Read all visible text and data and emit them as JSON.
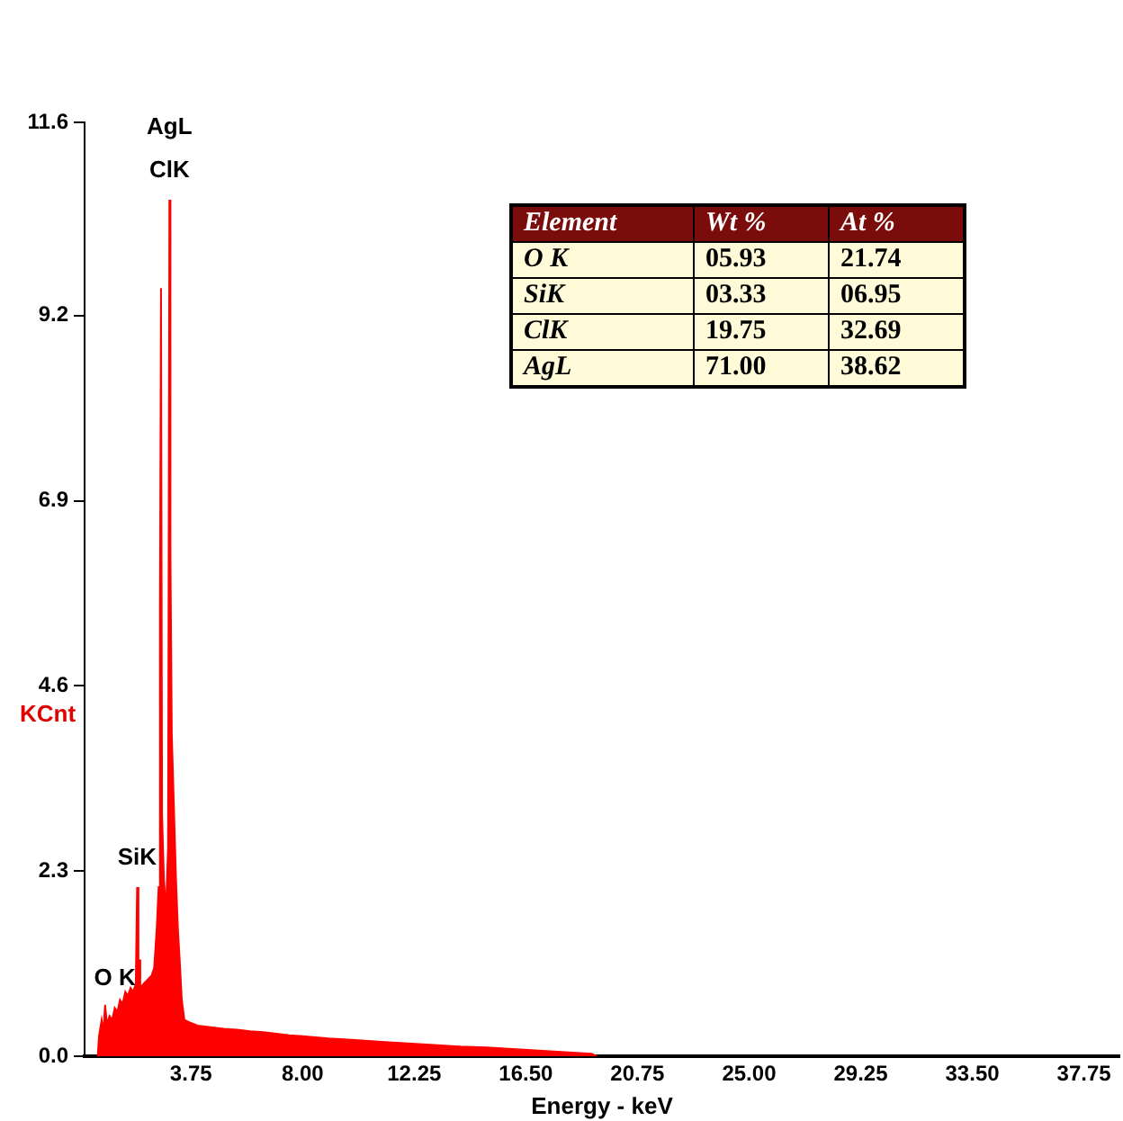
{
  "chart_data": {
    "type": "area",
    "xlabel": "Energy - keV",
    "ylabel": "KCnt",
    "color": "#ff0000",
    "x": [
      0.2,
      0.25,
      0.35,
      0.42,
      0.48,
      0.55,
      0.65,
      0.75,
      0.85,
      0.95,
      1.05,
      1.15,
      1.25,
      1.35,
      1.45,
      1.55,
      1.65,
      1.7,
      1.75,
      1.78,
      1.82,
      1.95,
      2.1,
      2.25,
      2.35,
      2.45,
      2.52,
      2.57,
      2.61,
      2.65,
      2.72,
      2.8,
      2.88,
      2.93,
      2.97,
      3.02,
      3.1,
      3.18,
      3.25,
      3.32,
      3.4,
      3.5,
      3.7,
      4.0,
      4.5,
      5.0,
      5.5,
      6.0,
      6.5,
      7.0,
      7.5,
      8.0,
      9,
      10,
      11,
      12,
      13,
      14,
      15,
      16,
      17,
      18,
      19,
      19.2
    ],
    "values": [
      0,
      0.25,
      0.45,
      0.3,
      0.64,
      0.4,
      0.5,
      0.45,
      0.6,
      0.55,
      0.7,
      0.65,
      0.8,
      0.75,
      0.85,
      0.8,
      0.9,
      2.1,
      0.9,
      1.2,
      0.85,
      0.9,
      0.95,
      1.0,
      1.1,
      1.6,
      2.1,
      5.6,
      9.54,
      3.0,
      2.2,
      1.8,
      2.6,
      10.64,
      6.2,
      4.0,
      3.1,
      2.2,
      1.6,
      1.2,
      0.7,
      0.45,
      0.42,
      0.38,
      0.36,
      0.34,
      0.33,
      0.31,
      0.3,
      0.28,
      0.26,
      0.25,
      0.22,
      0.2,
      0.18,
      0.16,
      0.14,
      0.12,
      0.11,
      0.09,
      0.07,
      0.05,
      0.03,
      0
    ],
    "xlim": [
      -0.3,
      39.1
    ],
    "xticks": [
      3.75,
      {
        "value": 8,
        "label": "8.00"
      },
      12.25,
      {
        "value": 16.5,
        "label": "16.50"
      },
      20.75,
      {
        "value": 25,
        "label": "25.00"
      },
      29.25,
      {
        "value": 33.5,
        "label": "33.50"
      },
      37.75
    ],
    "ylim": [
      0,
      11.6
    ],
    "yticks": [
      {
        "value": 0,
        "label": "0.0"
      },
      2.3,
      4.6,
      6.9,
      9.2,
      11.6
    ],
    "grid": false,
    "legend": false,
    "annotations": [
      {
        "text": "AgL",
        "x": 2.93,
        "y": 10.64
      },
      {
        "text": "ClK",
        "x": 2.93,
        "y": 10.64
      },
      {
        "text": "SiK",
        "x": 1.7,
        "y": 2.1
      },
      {
        "text": "O K",
        "x": 0.85,
        "y": 0.6
      },
      "Element",
      "Wt %",
      "At %",
      "O K",
      "05.93",
      "21.74",
      "SiK",
      "03.33",
      "06.95",
      "ClK",
      "19.75",
      "32.69",
      "AgL",
      "71.00",
      "38.62"
    ]
  }
}
